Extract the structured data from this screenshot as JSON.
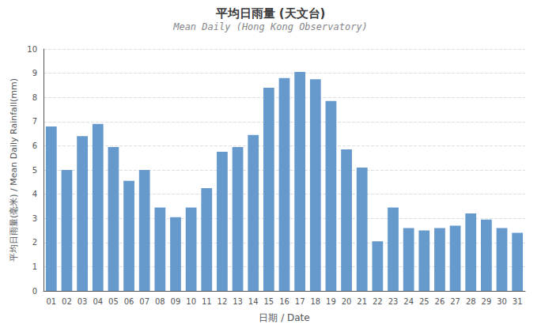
{
  "chart_data": {
    "type": "bar",
    "title": "平均日雨量 (天文台)",
    "subtitle": "Mean Daily (Hong Kong Observatory)",
    "xlabel": "日期 / Date",
    "ylabel": "平均日雨量(毫米) / Mean Daily Rainfall(mm)",
    "categories": [
      "01",
      "02",
      "03",
      "04",
      "05",
      "06",
      "07",
      "08",
      "09",
      "10",
      "11",
      "12",
      "13",
      "14",
      "15",
      "16",
      "17",
      "18",
      "19",
      "20",
      "21",
      "22",
      "23",
      "24",
      "25",
      "26",
      "27",
      "28",
      "29",
      "30",
      "31"
    ],
    "values": [
      6.8,
      5.0,
      6.4,
      6.9,
      5.95,
      4.55,
      5.0,
      3.45,
      3.05,
      3.45,
      4.25,
      5.75,
      5.95,
      6.45,
      8.4,
      8.8,
      9.05,
      8.75,
      7.85,
      5.85,
      5.1,
      2.05,
      3.45,
      2.6,
      2.5,
      2.6,
      2.7,
      3.2,
      2.95,
      2.6,
      2.4
    ],
    "color": "#6699CC",
    "ylim": [
      0,
      10
    ],
    "yticks": [
      0,
      1,
      2,
      3,
      4,
      5,
      6,
      7,
      8,
      9,
      10
    ],
    "grid": true
  }
}
